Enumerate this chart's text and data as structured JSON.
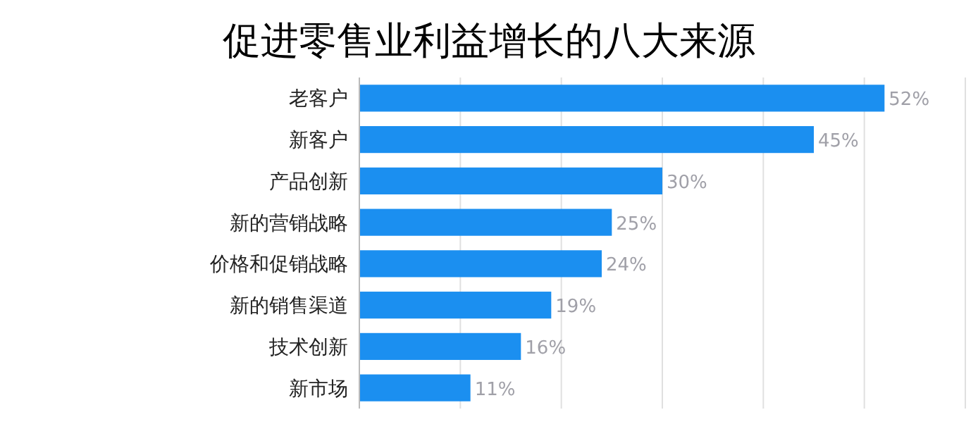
{
  "chart_data": {
    "type": "bar",
    "orientation": "horizontal",
    "title": "促进零售业利益增长的八大来源",
    "categories": [
      "老客户",
      "新客户",
      "产品创新",
      "新的营销战略",
      "价格和促销战略",
      "新的销售渠道",
      "技术创新",
      "新市场"
    ],
    "values": [
      52,
      45,
      30,
      25,
      24,
      19,
      16,
      11
    ],
    "value_labels": [
      "52%",
      "45%",
      "30%",
      "25%",
      "24%",
      "19%",
      "16%",
      "11%"
    ],
    "color": "#1b8ff0",
    "xlim": [
      0,
      60
    ],
    "xticks": [
      {
        "value": 0,
        "label": null
      },
      {
        "value": 10,
        "label": null
      },
      {
        "value": 20,
        "label": null
      },
      {
        "value": 30,
        "label": null
      },
      {
        "value": 40,
        "label": null
      },
      {
        "value": 50,
        "label": null
      },
      {
        "value": 60,
        "label": null
      }
    ],
    "grid": "x",
    "tick_labels": "y"
  }
}
